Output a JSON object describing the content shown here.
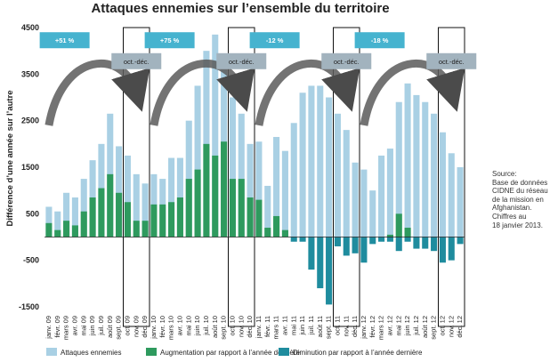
{
  "source": {
    "lines": [
      "Source:",
      "Base de données",
      "CIDNE du réseau",
      "de la mission en",
      "Afghanistan.",
      "Chiffres au",
      "18 janvier 2013."
    ]
  },
  "chart_data": {
    "type": "bar",
    "title": "Attaques ennemies sur l’ensemble du territoire",
    "ylabel": "Différence d’une année sur l’autre",
    "xlabel": "",
    "ylim": [
      -1500,
      4500
    ],
    "yticks": [
      -1500,
      -500,
      500,
      1500,
      2500,
      3500,
      4500
    ],
    "grid": false,
    "legend_position": "bottom",
    "categories": [
      "janv. 09",
      "févr. 09",
      "mars 09",
      "avr. 09",
      "mai 09",
      "juin 09",
      "juil. 09",
      "août 09",
      "sept. 09",
      "oct. 09",
      "nov. 09",
      "déc. 09",
      "janv. 10",
      "févr. 10",
      "mars 10",
      "avr. 10",
      "mai 10",
      "juin 10",
      "juil. 10",
      "août 10",
      "sept. 10",
      "oct. 10",
      "nov. 10",
      "déc. 10",
      "janv. 11",
      "févr. 11",
      "mars 11",
      "avr. 11",
      "mai 11",
      "juin 11",
      "juil. 11",
      "août 11",
      "sept. 11",
      "oct. 11",
      "nov. 11",
      "déc. 11",
      "janv. 12",
      "févr. 12",
      "mars 12",
      "avr. 12",
      "mai 12",
      "juin 12",
      "juil. 12",
      "août 12",
      "sept. 12",
      "oct. 12",
      "nov. 12",
      "déc. 12"
    ],
    "series": [
      {
        "name": "Attaques ennemies",
        "color": "#a9d0e4",
        "values": [
          650,
          550,
          950,
          850,
          1250,
          1650,
          2000,
          2650,
          1950,
          1750,
          1350,
          1150,
          1350,
          1250,
          1700,
          1700,
          2500,
          3250,
          4000,
          4350,
          3600,
          3000,
          2650,
          2000,
          2050,
          1100,
          2150,
          1850,
          2450,
          3100,
          3250,
          3250,
          3000,
          2650,
          2300,
          1600,
          1450,
          1000,
          1750,
          1900,
          2900,
          3300,
          3050,
          2900,
          2650,
          2250,
          1800,
          1500
        ]
      },
      {
        "name": "Augmentation par rapport à l’année dernière",
        "color": "#2e9a5e",
        "values": [
          300,
          150,
          350,
          250,
          550,
          850,
          1050,
          1350,
          950,
          750,
          350,
          350,
          700,
          700,
          750,
          850,
          1250,
          1450,
          2000,
          1750,
          2050,
          1250,
          1250,
          850,
          800,
          200,
          450,
          150,
          0,
          0,
          0,
          0,
          0,
          0,
          0,
          0,
          0,
          0,
          0,
          50,
          500,
          200,
          0,
          0,
          0,
          0,
          0,
          0
        ]
      },
      {
        "name": "Diminution par rapport à l’année dernière",
        "color": "#1f8c9e",
        "values": [
          0,
          0,
          0,
          0,
          0,
          0,
          0,
          0,
          0,
          0,
          0,
          0,
          0,
          0,
          0,
          0,
          0,
          0,
          0,
          0,
          0,
          0,
          0,
          0,
          0,
          0,
          0,
          0,
          -100,
          -100,
          -700,
          -1100,
          -1450,
          -200,
          -400,
          -350,
          -550,
          -150,
          -100,
          -100,
          -300,
          -100,
          -250,
          -250,
          -300,
          -550,
          -500,
          -150
        ]
      }
    ],
    "annotations": {
      "percent_labels": [
        "+51 %",
        "+75 %",
        "-12 %",
        "-18 %"
      ],
      "period_label": "oct.-déc.",
      "accent_color": "#46b3cf",
      "period_box_color": "#a2b3be"
    }
  }
}
